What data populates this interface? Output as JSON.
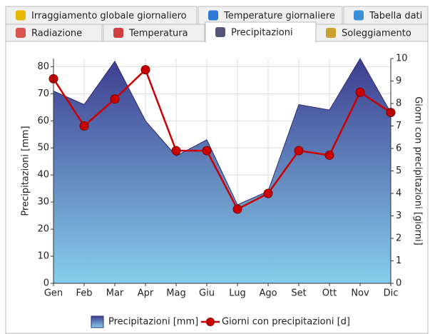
{
  "tabs": {
    "row1": [
      "Irraggiamento globale giornaliero",
      "Temperature giornaliere",
      "Tabella dati"
    ],
    "row2": [
      "Radiazione",
      "Temperatura",
      "Precipitazioni",
      "Soleggiamento"
    ]
  },
  "chart_data": {
    "type": "area-line",
    "ylabel": "Precipitazioni [mm]",
    "y2label": "Giorni con precipitazioni [giorni]",
    "categories": [
      "Gen",
      "Feb",
      "Mar",
      "Apr",
      "Mag",
      "Giu",
      "Lug",
      "Ago",
      "Set",
      "Ott",
      "Nov",
      "Dic"
    ],
    "series": [
      {
        "name": "Precipitazioni [mm]",
        "type": "area",
        "color": "#3d3d8f",
        "color2": "#87ceeb",
        "values": [
          71,
          66,
          82,
          60,
          47,
          53,
          29,
          34,
          66,
          64,
          83,
          63
        ]
      },
      {
        "name": "Giorni con precipitazioni [d]",
        "type": "line",
        "axis": "y2",
        "color": "#cc0000",
        "values": [
          9.1,
          7.0,
          8.2,
          9.5,
          5.9,
          5.9,
          3.3,
          4.0,
          5.9,
          5.7,
          8.5,
          7.6
        ]
      }
    ],
    "ylim": [
      0,
      83
    ],
    "yticks": [
      0,
      10,
      20,
      30,
      40,
      50,
      60,
      70,
      80
    ],
    "y2lim": [
      0,
      10
    ],
    "y2ticks": [
      0,
      1,
      2,
      3,
      4,
      5,
      6,
      7,
      8,
      9,
      10
    ],
    "grid": true,
    "legend": "bottom"
  }
}
